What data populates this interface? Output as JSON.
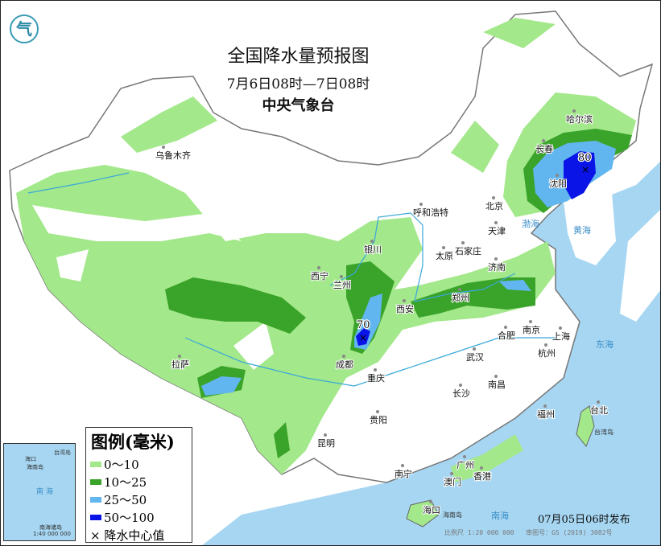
{
  "header": {
    "title": "全国降水量预报图",
    "period": "7月6日08时—7日08时",
    "issuer": "中央气象台",
    "logo_text": "气"
  },
  "legend": {
    "title": "图例(毫米)",
    "items": [
      {
        "label": "0～10",
        "color": "#a3e88a"
      },
      {
        "label": "10～25",
        "color": "#3aa32a"
      },
      {
        "label": "25～50",
        "color": "#62b6f0"
      },
      {
        "label": "50～100",
        "color": "#0a14e6"
      }
    ],
    "center_marker": "× 降水中心值"
  },
  "rain_centers": [
    {
      "value": "80",
      "location": "吉林东南部"
    },
    {
      "value": "70",
      "location": "四川北部"
    }
  ],
  "cities": [
    "乌鲁木齐",
    "哈尔滨",
    "长春",
    "沈阳",
    "呼和浩特",
    "北京",
    "天津",
    "银川",
    "太原",
    "石家庄",
    "济南",
    "西宁",
    "兰州",
    "郑州",
    "西安",
    "合肥",
    "南京",
    "上海",
    "成都",
    "武汉",
    "杭州",
    "拉萨",
    "重庆",
    "长沙",
    "南昌",
    "福州",
    "台北",
    "贵阳",
    "昆明",
    "广州",
    "南宁",
    "澳门",
    "香港",
    "海口"
  ],
  "seas": [
    "渤海",
    "黄海",
    "东海",
    "南海",
    "台湾岛",
    "海南岛"
  ],
  "inset": {
    "labels": [
      "南 海",
      "海口",
      "海南岛",
      "台湾岛",
      "南海诸岛"
    ],
    "scale": "1:40 000 000"
  },
  "footer": {
    "published": "07月05日06时发布",
    "scale": "比例尺 1:20 000 000",
    "map_no": "审图号：GS (2019) 3082号"
  },
  "colors": {
    "sea": "#a6d6f2",
    "land": "#ffffff",
    "border": "#888888",
    "river": "#3aa8d8"
  }
}
